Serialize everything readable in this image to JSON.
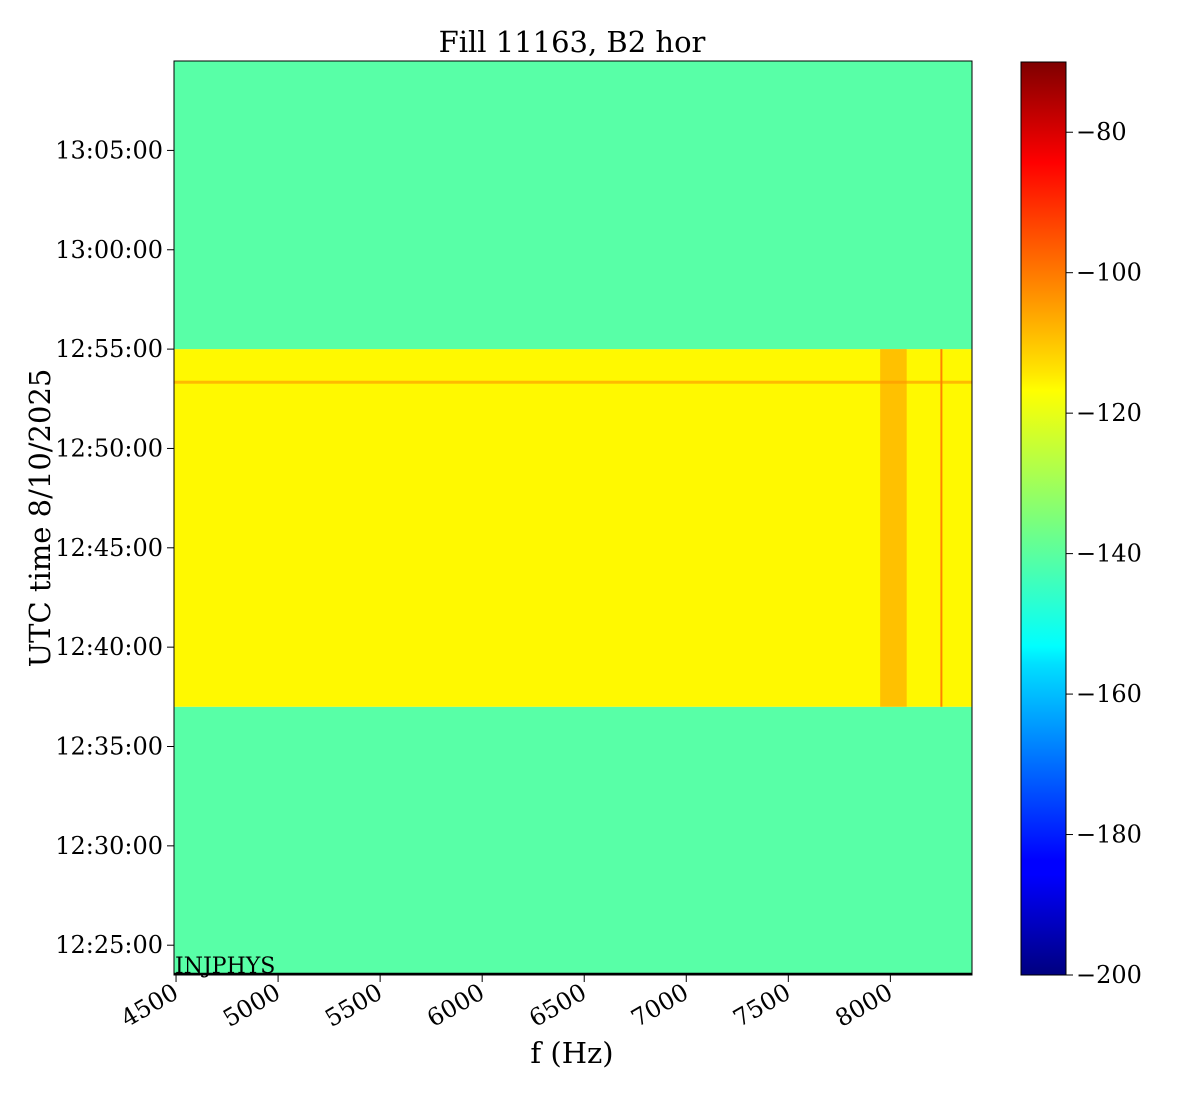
{
  "chart_data": {
    "type": "heatmap",
    "title": "Fill 11163, B2 hor",
    "xlabel": "f (Hz)",
    "ylabel": "UTC time 8/10/2025",
    "xlim": [
      4490,
      8400
    ],
    "x_ticks": [
      {
        "value": 4500,
        "label": "4500"
      },
      {
        "value": 5000,
        "label": "5000"
      },
      {
        "value": 5500,
        "label": "5500"
      },
      {
        "value": 6000,
        "label": "6000"
      },
      {
        "value": 6500,
        "label": "6500"
      },
      {
        "value": 7000,
        "label": "7000"
      },
      {
        "value": 7500,
        "label": "7500"
      },
      {
        "value": 8000,
        "label": "8000"
      }
    ],
    "y_range_minutes": [
      -1.5,
      44.5
    ],
    "y_ticks": [
      {
        "value": 0,
        "label": "12:25:00"
      },
      {
        "value": 5,
        "label": "12:30:00"
      },
      {
        "value": 10,
        "label": "12:35:00"
      },
      {
        "value": 15,
        "label": "12:40:00"
      },
      {
        "value": 20,
        "label": "12:45:00"
      },
      {
        "value": 25,
        "label": "12:50:00"
      },
      {
        "value": 30,
        "label": "12:55:00"
      },
      {
        "value": 35,
        "label": "13:00:00"
      },
      {
        "value": 40,
        "label": "13:05:00"
      }
    ],
    "colorbar": {
      "colormap": "jet",
      "vmin": -200,
      "vmax": -70,
      "ticks": [
        {
          "value": -80,
          "label": "−80"
        },
        {
          "value": -100,
          "label": "−100"
        },
        {
          "value": -120,
          "label": "−120"
        },
        {
          "value": -140,
          "label": "−140"
        },
        {
          "value": -160,
          "label": "−160"
        },
        {
          "value": -180,
          "label": "−180"
        },
        {
          "value": -200,
          "label": "−200"
        }
      ]
    },
    "regions": [
      {
        "name": "before",
        "t_start": "12:23:30",
        "t_end": "12:37:00",
        "level": -140
      },
      {
        "name": "active",
        "t_start": "12:37:00",
        "t_end": "12:55:00",
        "level": -118
      },
      {
        "name": "after",
        "t_start": "12:55:00",
        "t_end": "13:09:30",
        "level": -140
      }
    ],
    "features": [
      {
        "kind": "horizontal-line",
        "time": "12:53:20",
        "level": -108
      },
      {
        "kind": "vertical-band",
        "f_start": 7950,
        "f_end": 8080,
        "level": -105
      },
      {
        "kind": "vertical-line",
        "f": 8250,
        "level": -103
      }
    ],
    "annotation": "INJPHYS",
    "grid": false
  }
}
